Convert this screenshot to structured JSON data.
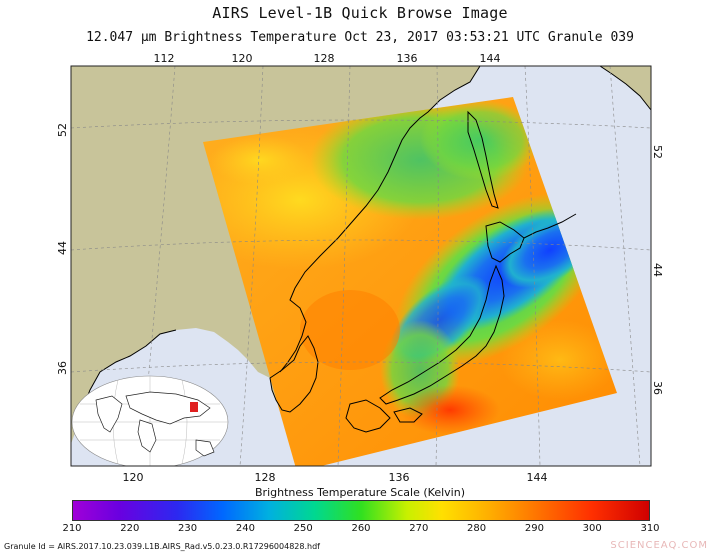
{
  "header": {
    "title": "AIRS Level-1B Quick Browse Image",
    "subtitle": "12.047 μm Brightness Temperature   Oct 23, 2017 03:53:21 UTC   Granule 039"
  },
  "map": {
    "lon_ticks_top": [
      "112",
      "120",
      "128",
      "136",
      "144"
    ],
    "lon_ticks_bottom": [
      "120",
      "128",
      "136",
      "144"
    ],
    "lat_ticks_left": [
      "52",
      "44",
      "36"
    ],
    "lat_ticks_right": [
      "52",
      "44",
      "36"
    ],
    "colors": {
      "land": "#c8c49a",
      "ocean": "#dde4f2",
      "coastline": "#000000",
      "grid": "#888888",
      "inset_highlight": "#e02020"
    }
  },
  "colorbar": {
    "label": "Brightness Temperature Scale (Kelvin)",
    "min": 210,
    "max": 310,
    "ticks": [
      "210",
      "220",
      "230",
      "240",
      "250",
      "260",
      "270",
      "280",
      "290",
      "300",
      "310"
    ]
  },
  "footer": {
    "granule_id": "Granule Id = AIRS.2017.10.23.039.L1B.AIRS_Rad.v5.0.23.0.R17296004828.hdf",
    "watermark": "SCIENCEAQ.COM"
  }
}
